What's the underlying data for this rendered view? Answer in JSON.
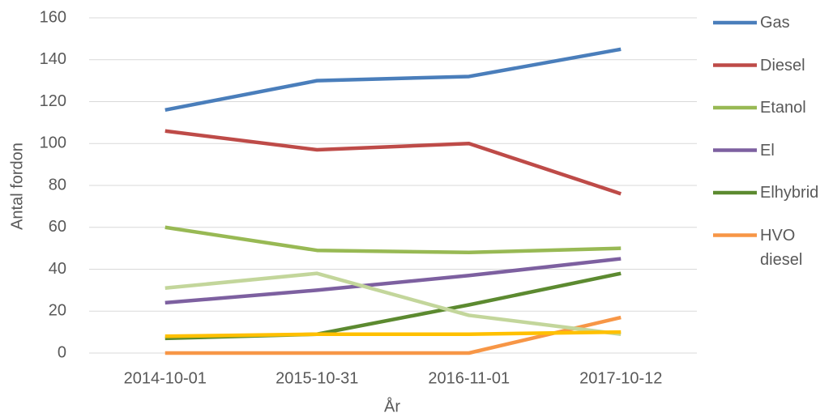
{
  "chart_data": {
    "type": "line",
    "x_label": "År",
    "y_label": "Antal fordon",
    "categories": [
      "2014-10-01",
      "2015-10-31",
      "2016-11-01",
      "2017-10-12"
    ],
    "series": [
      {
        "name": "Gas",
        "color": "#4a7ebb",
        "values": [
          116,
          130,
          132,
          145
        ]
      },
      {
        "name": "Diesel",
        "color": "#be4b48",
        "values": [
          106,
          97,
          100,
          76
        ]
      },
      {
        "name": "Etanol",
        "color": "#98b954",
        "values": [
          60,
          49,
          48,
          50
        ]
      },
      {
        "name": "El",
        "color": "#7d60a0",
        "values": [
          24,
          30,
          37,
          45
        ]
      },
      {
        "name": "Elhybrid",
        "color": "#5c8a30",
        "values": [
          7,
          9,
          23,
          38
        ]
      },
      {
        "name": "HVO diesel",
        "color": "#f79646",
        "values": [
          0,
          0,
          0,
          17
        ]
      },
      {
        "color": "#c3d69b",
        "values": [
          31,
          38,
          18,
          9
        ]
      },
      {
        "color": "#ffc000",
        "values": [
          8,
          9,
          9,
          10
        ]
      }
    ],
    "ylim": [
      0,
      160
    ],
    "yticks": [
      0,
      20,
      40,
      60,
      80,
      100,
      120,
      140,
      160
    ],
    "grid": true
  }
}
